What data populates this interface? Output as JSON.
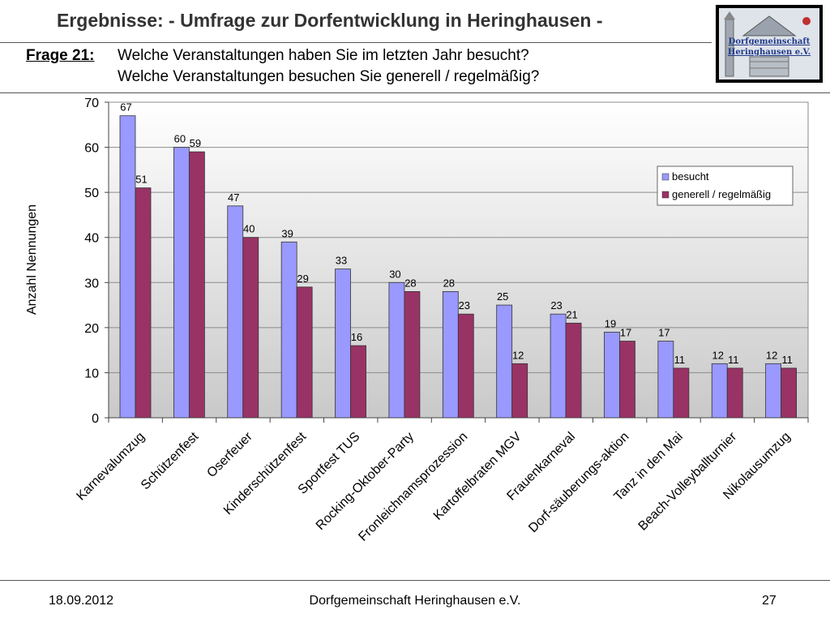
{
  "header": {
    "title": "Ergebnisse: - Umfrage zur Dorfentwicklung in Heringhausen -",
    "question_label": "Frage 21:",
    "question_line1": "Welche Veranstaltungen haben Sie im letzten Jahr besucht?",
    "question_line2": "Welche Veranstaltungen besuchen Sie generell / regelmäßig?"
  },
  "logo": {
    "line1": "Dorfgemeinschaft",
    "line2": "Heringhausen e.V."
  },
  "chart_data": {
    "type": "bar",
    "ylabel": "Anzahl Nennungen",
    "ylim": [
      0,
      70
    ],
    "yticks": [
      0,
      10,
      20,
      30,
      40,
      50,
      60,
      70
    ],
    "grid": true,
    "legend_position": "top-right",
    "categories": [
      "Karnevalumzug",
      "Schützenfest",
      "Oserfeuer",
      "Kinderschützenfest",
      "Sportfest TUS",
      "Rocking-Oktober-Party",
      "Fronleichnamsprozession",
      "Kartoffelbraten MGV",
      "Frauenkarneval",
      "Dorf-säuberungs-aktion",
      "Tanz in den Mai",
      "Beach-Volleyballturnier",
      "Nikolausumzug"
    ],
    "series": [
      {
        "name": "besucht",
        "color": "#9999ff",
        "values": [
          67,
          60,
          47,
          39,
          33,
          30,
          28,
          25,
          23,
          19,
          17,
          12,
          12
        ]
      },
      {
        "name": "generell / regelmäßig",
        "color": "#993366",
        "values": [
          51,
          59,
          40,
          29,
          16,
          28,
          23,
          12,
          21,
          17,
          11,
          11,
          11
        ]
      }
    ]
  },
  "footer": {
    "date": "18.09.2012",
    "org": "Dorfgemeinschaft Heringhausen e.V.",
    "page": "27"
  }
}
